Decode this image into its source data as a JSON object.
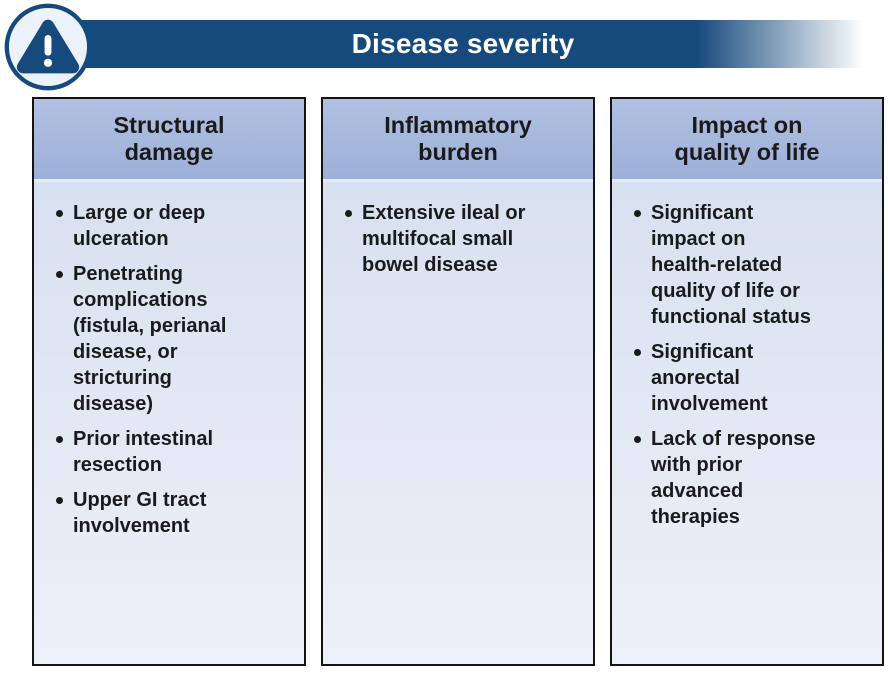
{
  "banner": {
    "title": "Disease severity"
  },
  "icon": {
    "name": "warning-alert-icon",
    "glyph": "!"
  },
  "colors": {
    "banner_blue": "#164A7D",
    "title_text": "#FFFFFF",
    "header_blue_top": "#B1C0E2",
    "header_blue_bottom": "#9DB0D8",
    "body_blue_top": "#D4DEEF",
    "body_blue_bottom": "#EDF0F8",
    "panel_border": "#141414",
    "text_dark": "#1A1A1A",
    "icon_bg": "#EBF2F9"
  },
  "columns": [
    {
      "title": "Structural damage",
      "title_lines": [
        "Structural",
        "damage"
      ],
      "bullets": [
        "Large or deep\nulceration",
        "Penetrating\ncomplications\n(fistula, perianal\ndisease, or\nstricturing\ndisease)",
        "Prior intestinal\nresection",
        "Upper GI tract\ninvolvement"
      ]
    },
    {
      "title": "Inflammatory burden",
      "title_lines": [
        "Inflammatory",
        "burden"
      ],
      "bullets": [
        "Extensive ileal or\nmultifocal small\nbowel disease"
      ]
    },
    {
      "title": "Impact on quality of life",
      "title_lines": [
        "Impact on",
        "quality of life"
      ],
      "bullets": [
        "Significant\nimpact on\nhealth-related\nquality of life or\nfunctional status",
        "Significant\nanorectal\ninvolvement",
        "Lack of response\nwith prior\nadvanced\ntherapies"
      ]
    }
  ]
}
